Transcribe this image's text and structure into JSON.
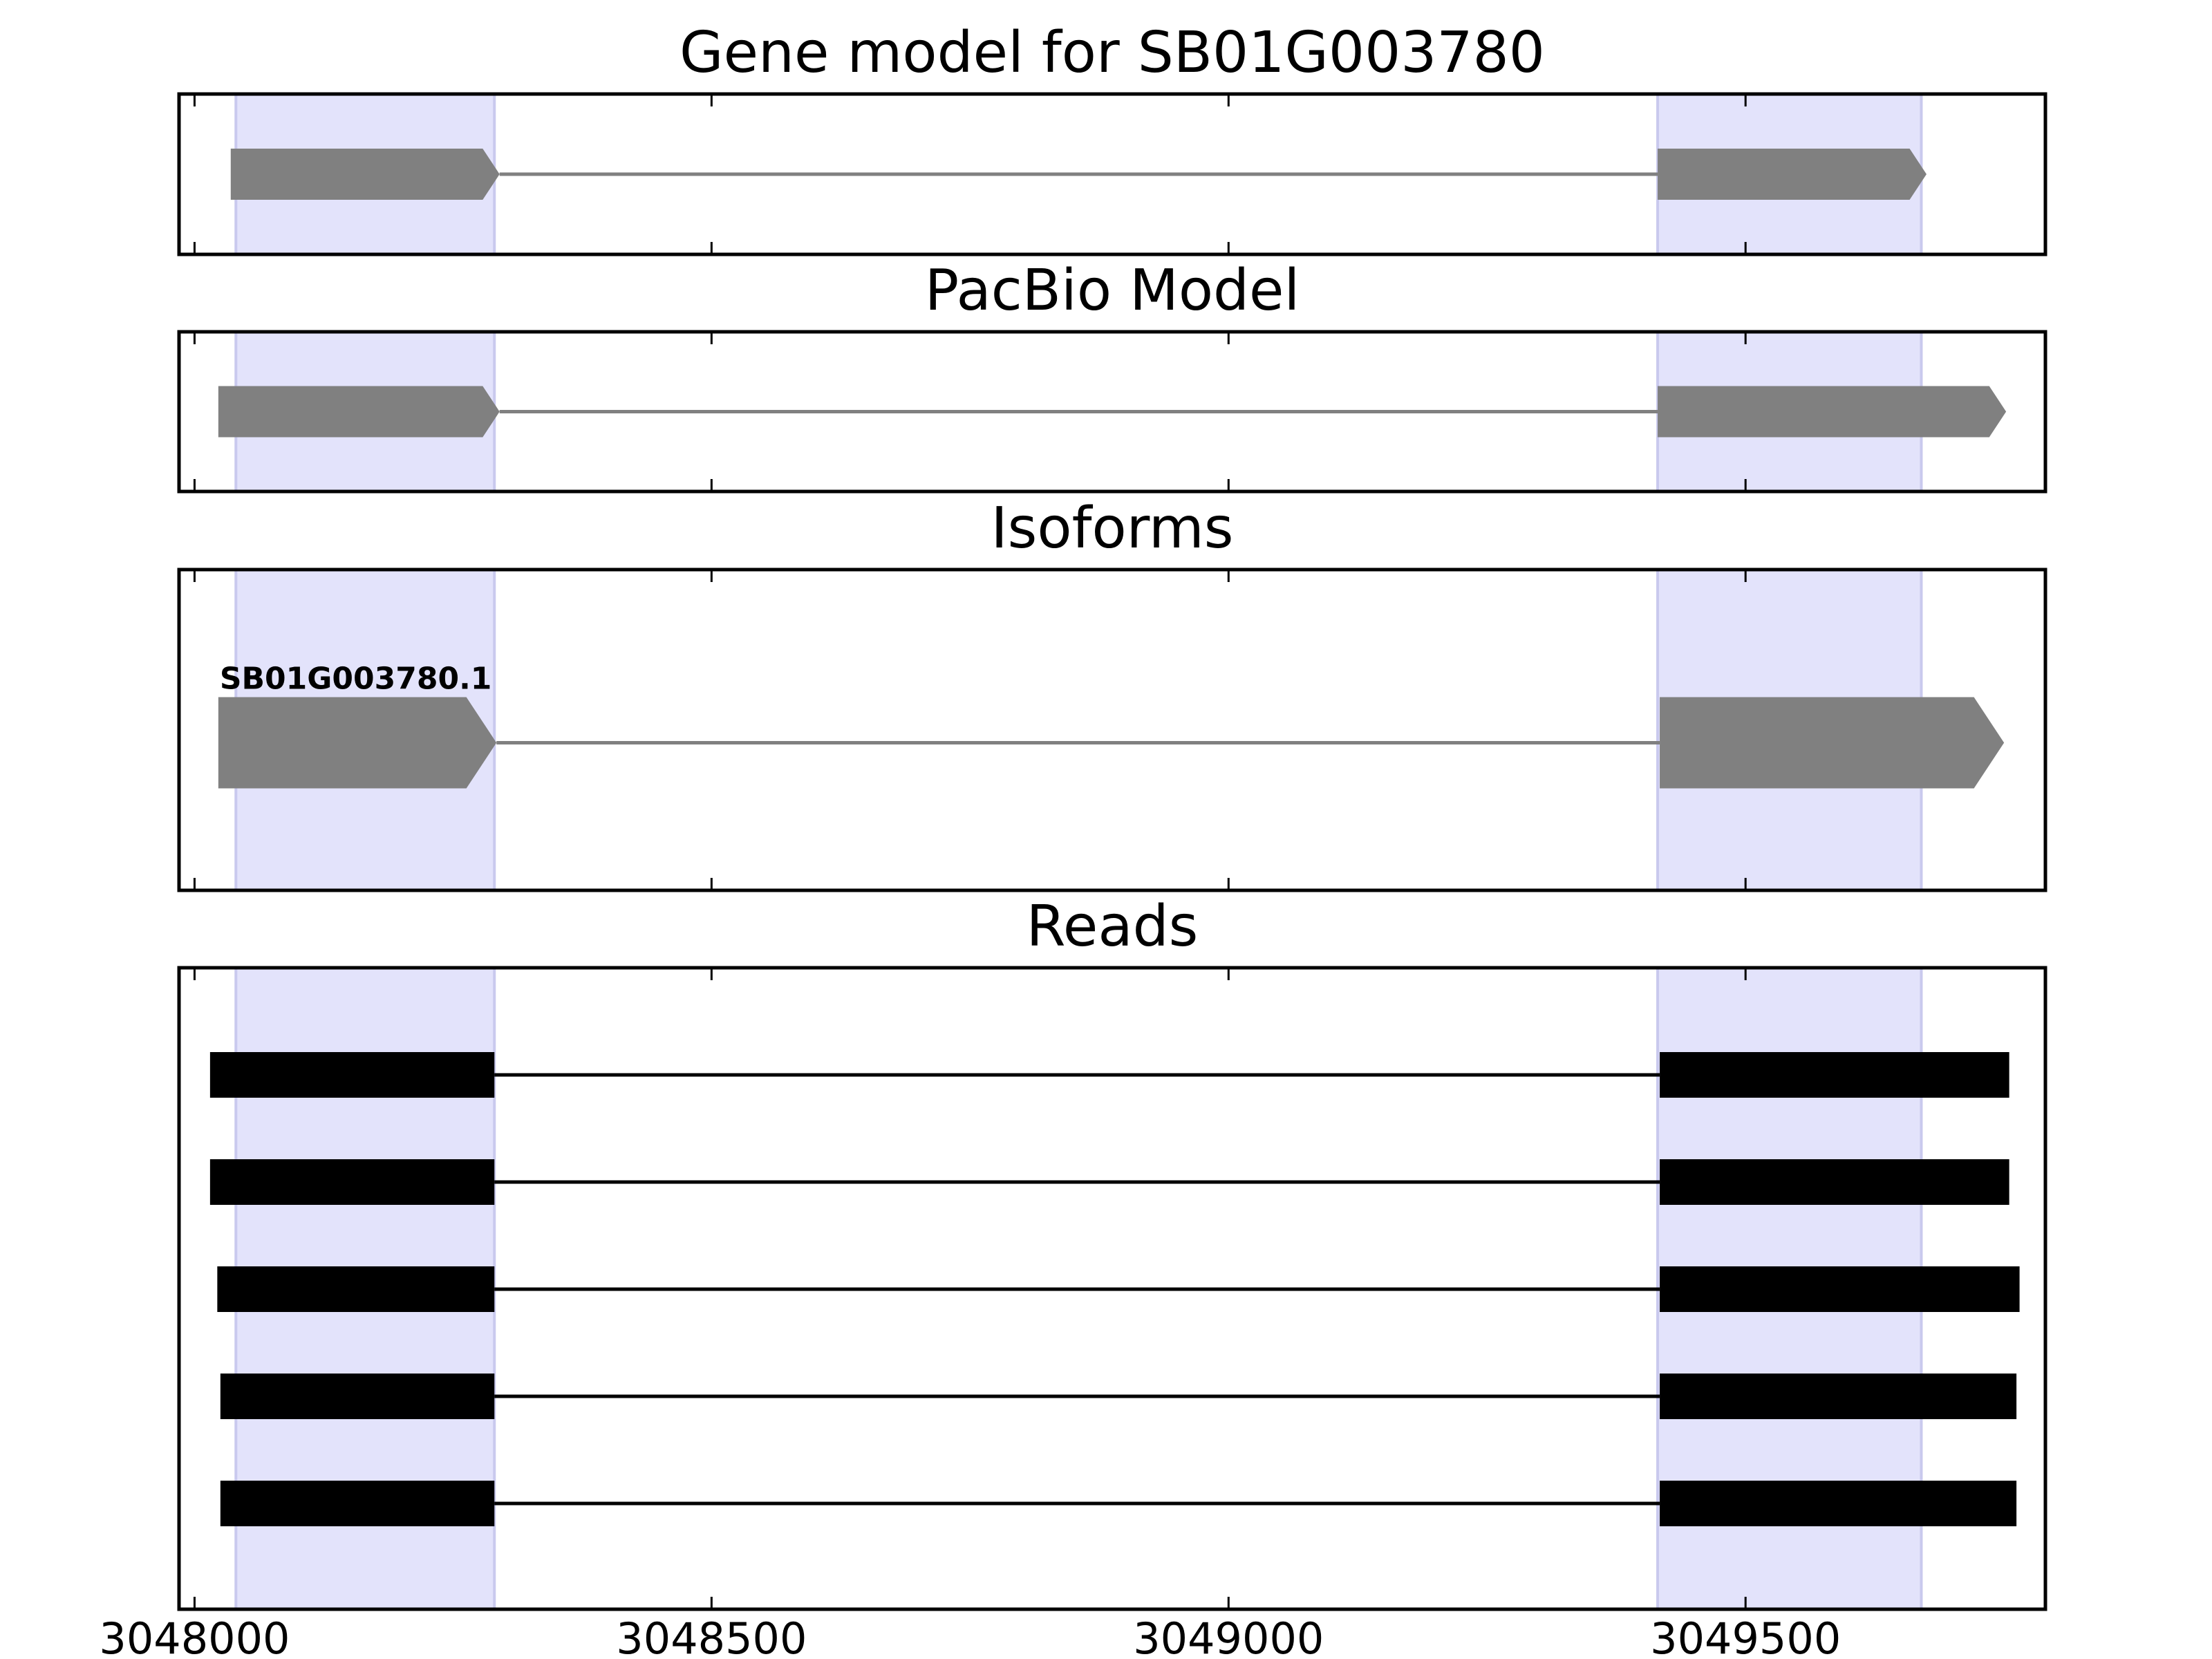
{
  "chart_data": {
    "type": "gene-model",
    "x_ticks": [
      3048000,
      3048500,
      3049000,
      3049500
    ],
    "xlim": [
      3047985,
      3049790
    ],
    "colors": {
      "highlight": "#e3e3fb",
      "highlight_edge": "#c9c9ee",
      "model": "#808080",
      "read": "#000000",
      "frame": "#000000"
    },
    "highlight_regions": [
      [
        3048040,
        3048290
      ],
      [
        3049415,
        3049670
      ]
    ],
    "panels": [
      {
        "title": "Gene model for SB01G003780",
        "kind": "model",
        "tracks": [
          {
            "label": "",
            "exons": [
              [
                3048035,
                3048295
              ],
              [
                3049415,
                3049675
              ]
            ],
            "strand": "+"
          }
        ]
      },
      {
        "title": "PacBio Model",
        "kind": "model",
        "tracks": [
          {
            "label": "",
            "exons": [
              [
                3048023,
                3048295
              ],
              [
                3049415,
                3049752
              ]
            ],
            "strand": "+"
          }
        ]
      },
      {
        "title": "Isoforms",
        "kind": "isoform",
        "tracks": [
          {
            "label": "SB01G003780.1",
            "exons": [
              [
                3048023,
                3048292
              ],
              [
                3049417,
                3049750
              ]
            ],
            "strand": "+"
          }
        ]
      },
      {
        "title": "Reads",
        "kind": "reads",
        "tracks": [
          {
            "label": "",
            "exons": [
              [
                3048015,
                3048290
              ],
              [
                3049417,
                3049755
              ]
            ]
          },
          {
            "label": "",
            "exons": [
              [
                3048015,
                3048290
              ],
              [
                3049417,
                3049755
              ]
            ]
          },
          {
            "label": "",
            "exons": [
              [
                3048022,
                3048290
              ],
              [
                3049417,
                3049765
              ]
            ]
          },
          {
            "label": "",
            "exons": [
              [
                3048025,
                3048290
              ],
              [
                3049417,
                3049762
              ]
            ]
          },
          {
            "label": "",
            "exons": [
              [
                3048025,
                3048290
              ],
              [
                3049417,
                3049762
              ]
            ]
          }
        ]
      }
    ]
  }
}
